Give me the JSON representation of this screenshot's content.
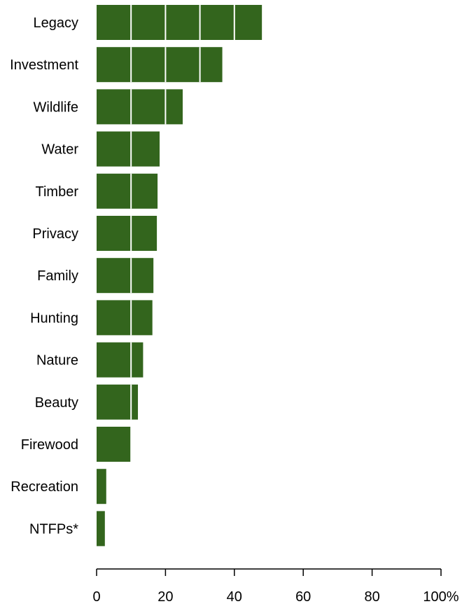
{
  "chart_data": {
    "type": "bar",
    "orientation": "horizontal",
    "categories": [
      "Legacy",
      "Investment",
      "Wildlife",
      "Water",
      "Timber",
      "Privacy",
      "Family",
      "Hunting",
      "Nature",
      "Beauty",
      "Firewood",
      "Recreation",
      "NTFPs*"
    ],
    "values": [
      48,
      36.5,
      25,
      18.3,
      17.7,
      17.5,
      16.5,
      16.2,
      13.5,
      12,
      9.8,
      2.8,
      2.4
    ],
    "xlim": [
      0,
      100
    ],
    "ticks": [
      0,
      20,
      40,
      60,
      80,
      100
    ],
    "tick_labels": [
      "0",
      "20",
      "40",
      "60",
      "80",
      "100%"
    ],
    "gridlines_inside_bars": [
      10,
      20,
      30,
      40
    ],
    "colors": {
      "bar": "#33651d",
      "grid": "#ffffff",
      "axis": "#000000"
    }
  }
}
